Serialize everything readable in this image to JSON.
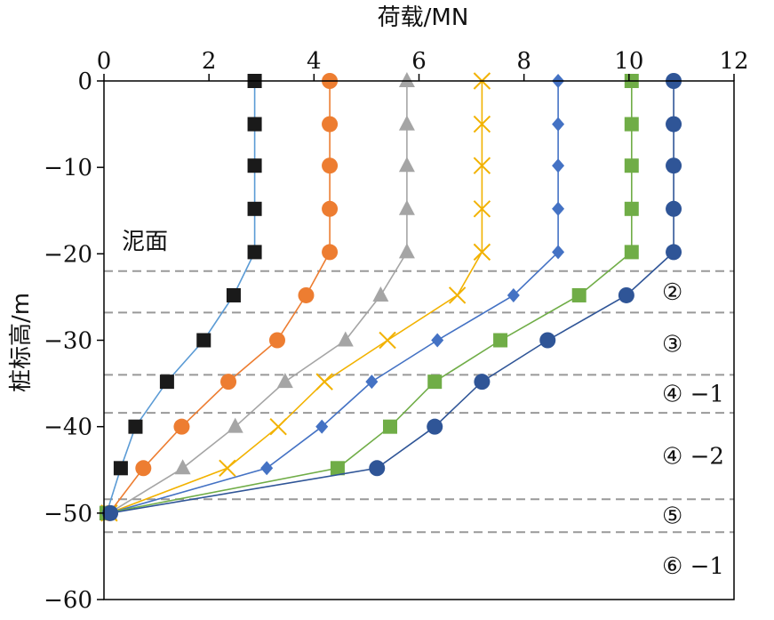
{
  "chart_data": {
    "type": "line",
    "title": "",
    "xlabel": "荷载/MN",
    "ylabel": "桩标高/m",
    "xlim": [
      0,
      12
    ],
    "ylim": [
      -60,
      0
    ],
    "x_axis_position": "top",
    "x_ticks": [
      "0",
      "2",
      "4",
      "6",
      "8",
      "10",
      "12"
    ],
    "y_ticks": [
      "0",
      "−10",
      "−20",
      "−30",
      "−40",
      "−50",
      "−60"
    ],
    "grid": false,
    "legend": "none",
    "mudline_label": "泥面",
    "soil_layers": [
      {
        "label": "②",
        "top": -22,
        "bottom": -26.8
      },
      {
        "label": "③",
        "top": -26.8,
        "bottom": -34
      },
      {
        "label": "④ −1",
        "top": -34,
        "bottom": -38.4
      },
      {
        "label": "④ −2",
        "top": -38.4,
        "bottom": -48.4
      },
      {
        "label": "⑤",
        "top": -48.4,
        "bottom": -52.2
      },
      {
        "label": "⑥ −1",
        "top": -52.2,
        "bottom": -60
      }
    ],
    "layer_boundaries": [
      -22,
      -26.8,
      -34,
      -38.4,
      -48.4,
      -52.2
    ],
    "series": [
      {
        "marker": "square",
        "marker_color": "#1a1a1a",
        "line_color": "#5b9bd5",
        "points": [
          [
            2.87,
            0
          ],
          [
            2.87,
            -5
          ],
          [
            2.87,
            -9.8
          ],
          [
            2.87,
            -14.8
          ],
          [
            2.87,
            -19.8
          ],
          [
            2.47,
            -24.8
          ],
          [
            1.9,
            -30
          ],
          [
            1.2,
            -34.8
          ],
          [
            0.6,
            -40
          ],
          [
            0.32,
            -44.8
          ],
          [
            0.05,
            -50
          ]
        ]
      },
      {
        "marker": "circle",
        "marker_color": "#ed7d31",
        "line_color": "#ed7d31",
        "points": [
          [
            4.3,
            0
          ],
          [
            4.3,
            -5
          ],
          [
            4.3,
            -9.8
          ],
          [
            4.3,
            -14.8
          ],
          [
            4.3,
            -19.8
          ],
          [
            3.85,
            -24.8
          ],
          [
            3.3,
            -30
          ],
          [
            2.37,
            -34.8
          ],
          [
            1.48,
            -40
          ],
          [
            0.75,
            -44.8
          ],
          [
            0.1,
            -50
          ]
        ]
      },
      {
        "marker": "triangle",
        "marker_color": "#a5a5a5",
        "line_color": "#a5a5a5",
        "points": [
          [
            5.77,
            0
          ],
          [
            5.77,
            -5
          ],
          [
            5.77,
            -9.8
          ],
          [
            5.77,
            -14.8
          ],
          [
            5.77,
            -19.8
          ],
          [
            5.27,
            -24.8
          ],
          [
            4.6,
            -30
          ],
          [
            3.45,
            -34.8
          ],
          [
            2.5,
            -40
          ],
          [
            1.5,
            -44.8
          ],
          [
            0.1,
            -50
          ]
        ]
      },
      {
        "marker": "x",
        "marker_color": "#f2b200",
        "line_color": "#f2b200",
        "points": [
          [
            7.2,
            0
          ],
          [
            7.2,
            -5
          ],
          [
            7.2,
            -9.8
          ],
          [
            7.2,
            -14.8
          ],
          [
            7.2,
            -19.8
          ],
          [
            6.73,
            -24.8
          ],
          [
            5.4,
            -30
          ],
          [
            4.2,
            -34.8
          ],
          [
            3.32,
            -40
          ],
          [
            2.35,
            -44.8
          ],
          [
            0.1,
            -50
          ]
        ]
      },
      {
        "marker": "diamond",
        "marker_color": "#4472c4",
        "line_color": "#4472c4",
        "points": [
          [
            8.65,
            0
          ],
          [
            8.65,
            -5
          ],
          [
            8.65,
            -9.8
          ],
          [
            8.65,
            -14.8
          ],
          [
            8.65,
            -19.8
          ],
          [
            7.8,
            -24.8
          ],
          [
            6.35,
            -30
          ],
          [
            5.1,
            -34.8
          ],
          [
            4.15,
            -40
          ],
          [
            3.1,
            -44.8
          ],
          [
            0.1,
            -50
          ]
        ]
      },
      {
        "marker": "square",
        "marker_color": "#70ad47",
        "line_color": "#70ad47",
        "points": [
          [
            10.05,
            0
          ],
          [
            10.05,
            -5
          ],
          [
            10.05,
            -9.8
          ],
          [
            10.05,
            -14.8
          ],
          [
            10.05,
            -19.8
          ],
          [
            9.05,
            -24.8
          ],
          [
            7.55,
            -30
          ],
          [
            6.3,
            -34.8
          ],
          [
            5.45,
            -40
          ],
          [
            4.45,
            -44.8
          ],
          [
            0.05,
            -50
          ]
        ]
      },
      {
        "marker": "circle",
        "marker_color": "#2f5597",
        "line_color": "#2f5597",
        "points": [
          [
            10.85,
            0
          ],
          [
            10.85,
            -5
          ],
          [
            10.85,
            -9.8
          ],
          [
            10.85,
            -14.8
          ],
          [
            10.85,
            -19.8
          ],
          [
            9.95,
            -24.8
          ],
          [
            8.45,
            -30
          ],
          [
            7.2,
            -34.8
          ],
          [
            6.3,
            -40
          ],
          [
            5.2,
            -44.8
          ],
          [
            0.12,
            -50
          ]
        ]
      }
    ]
  }
}
